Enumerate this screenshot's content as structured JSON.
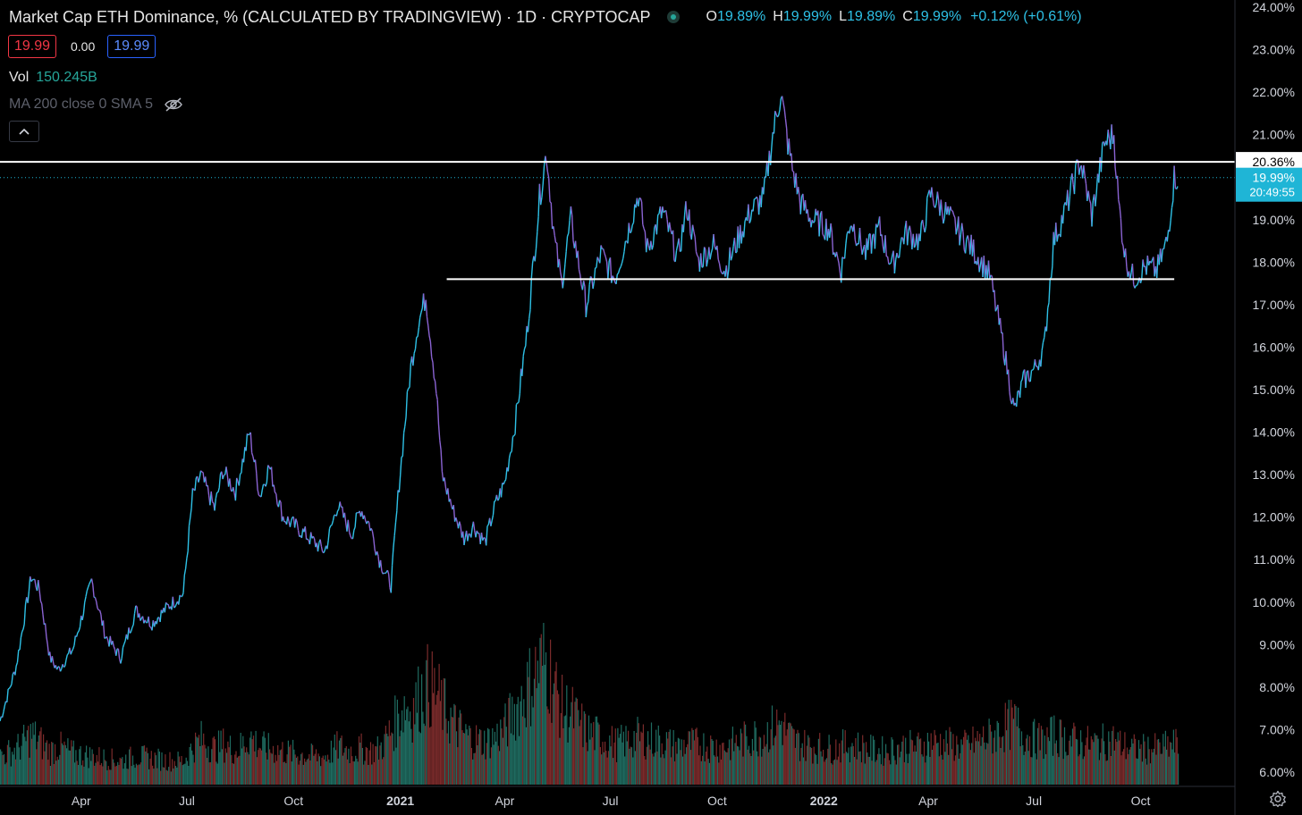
{
  "header": {
    "title": "Market Cap ETH Dominance, % (CALCULATED BY TRADINGVIEW) · 1D · CRYPTOCAP",
    "ohlc": [
      {
        "key": "O",
        "value": "19.89%"
      },
      {
        "key": "H",
        "value": "19.99%"
      },
      {
        "key": "L",
        "value": "19.89%"
      },
      {
        "key": "C",
        "value": "19.99%"
      }
    ],
    "change": "+0.12% (+0.61%)"
  },
  "quote": {
    "sell": "19.99",
    "spread": "0.00",
    "buy": "19.99"
  },
  "volume": {
    "label": "Vol",
    "value": "150.245B"
  },
  "indicator": {
    "label": "MA 200 close 0 SMA 5",
    "icon": "eye-off-icon"
  },
  "collapse_icon": "chevron-up-icon",
  "settings_icon": "gear-icon",
  "colors": {
    "background": "#000000",
    "up_candle": "#2ec1e6",
    "down_candle": "#8a63d2",
    "volume_up": "#1f6b60",
    "volume_down": "#7a2b2b",
    "last_price": "#1fb5d6",
    "horizontal_line": "#ffffff"
  },
  "chart_data": {
    "type": "line",
    "series": [
      {
        "x": [
          "2020-01-22",
          "2020-02-05",
          "2020-02-18",
          "2020-02-25",
          "2020-03-05",
          "2020-03-12",
          "2020-03-25",
          "2020-04-10",
          "2020-04-22",
          "2020-05-05",
          "2020-05-18",
          "2020-06-01",
          "2020-06-15",
          "2020-06-28",
          "2020-07-06",
          "2020-07-13",
          "2020-07-25",
          "2020-08-01",
          "2020-08-12",
          "2020-08-24",
          "2020-09-02",
          "2020-09-10",
          "2020-09-22",
          "2020-10-02",
          "2020-10-15",
          "2020-10-28",
          "2020-11-08",
          "2020-11-20",
          "2020-11-28",
          "2020-12-06",
          "2020-12-14",
          "2020-12-24",
          "2020-12-31",
          "2021-01-05",
          "2021-01-10",
          "2021-01-16",
          "2021-01-23",
          "2021-02-01",
          "2021-02-06",
          "2021-02-15",
          "2021-02-25",
          "2021-03-05",
          "2021-03-15",
          "2021-03-24",
          "2021-04-01",
          "2021-04-10",
          "2021-04-20",
          "2021-05-01",
          "2021-05-07",
          "2021-05-14",
          "2021-05-20",
          "2021-05-28",
          "2021-06-10",
          "2021-06-23",
          "2021-07-05",
          "2021-07-14",
          "2021-07-25",
          "2021-08-02",
          "2021-08-15",
          "2021-08-28",
          "2021-09-05",
          "2021-09-15",
          "2021-09-28",
          "2021-10-08",
          "2021-10-20",
          "2021-10-30",
          "2021-11-10",
          "2021-11-18",
          "2021-11-25",
          "2021-12-01",
          "2021-12-05",
          "2021-12-12",
          "2021-12-22",
          "2022-01-05",
          "2022-01-16",
          "2022-01-24",
          "2022-02-06",
          "2022-02-18",
          "2022-03-01",
          "2022-03-12",
          "2022-03-25",
          "2022-04-03",
          "2022-04-18",
          "2022-05-01",
          "2022-05-12",
          "2022-05-24",
          "2022-06-05",
          "2022-06-14",
          "2022-06-22",
          "2022-07-02",
          "2022-07-10",
          "2022-07-18",
          "2022-07-28",
          "2022-08-10",
          "2022-08-20",
          "2022-08-31",
          "2022-09-08",
          "2022-09-12",
          "2022-09-18",
          "2022-09-25",
          "2022-10-05",
          "2022-10-15",
          "2022-10-24",
          "2022-10-30",
          "2022-11-02"
        ],
        "values": [
          7.2,
          8.5,
          10.6,
          10.3,
          8.7,
          8.4,
          8.9,
          10.5,
          9.2,
          8.7,
          9.8,
          9.5,
          9.9,
          10.2,
          12.5,
          13.0,
          12.2,
          13.1,
          12.6,
          14.0,
          12.5,
          13.2,
          12.0,
          11.8,
          11.5,
          11.2,
          12.3,
          11.6,
          12.2,
          11.8,
          11.0,
          10.4,
          12.8,
          14.2,
          15.5,
          16.5,
          17.2,
          15.0,
          13.0,
          12.2,
          11.5,
          11.8,
          11.4,
          12.3,
          12.8,
          14.2,
          16.3,
          19.5,
          20.6,
          18.5,
          17.5,
          19.0,
          17.0,
          18.2,
          17.6,
          18.5,
          19.6,
          18.3,
          19.2,
          18.1,
          19.3,
          18.0,
          18.4,
          17.8,
          18.6,
          19.2,
          19.5,
          21.0,
          22.0,
          20.8,
          20.2,
          19.4,
          19.0,
          18.8,
          17.8,
          19.0,
          18.2,
          18.8,
          17.9,
          18.7,
          18.5,
          19.6,
          19.1,
          18.6,
          18.2,
          17.7,
          16.0,
          14.5,
          15.2,
          15.5,
          16.0,
          18.5,
          19.2,
          20.4,
          19.1,
          20.8,
          21.0,
          19.4,
          18.1,
          17.6,
          17.9,
          17.8,
          18.5,
          20.0,
          19.99
        ]
      }
    ],
    "volume_values": [
      1.2,
      1.5,
      2.1,
      1.8,
      1.4,
      1.6,
      1.3,
      1.2,
      1.1,
      1.0,
      1.2,
      1.1,
      1.0,
      1.0,
      1.6,
      1.9,
      1.5,
      1.7,
      1.4,
      2.0,
      1.6,
      1.5,
      1.4,
      1.3,
      1.2,
      1.2,
      1.6,
      1.4,
      1.5,
      1.4,
      1.5,
      2.3,
      3.0,
      3.4,
      3.1,
      3.6,
      4.2,
      3.8,
      3.3,
      2.6,
      2.1,
      1.9,
      1.8,
      2.0,
      2.4,
      3.2,
      4.0,
      5.0,
      5.2,
      4.0,
      3.2,
      3.0,
      2.2,
      2.0,
      1.7,
      1.8,
      2.0,
      1.9,
      1.8,
      1.6,
      1.7,
      1.7,
      1.6,
      1.6,
      1.8,
      2.0,
      2.1,
      2.4,
      2.6,
      2.1,
      1.9,
      1.7,
      1.6,
      1.5,
      1.6,
      1.7,
      1.5,
      1.4,
      1.5,
      1.6,
      1.6,
      1.8,
      1.7,
      1.6,
      1.8,
      2.0,
      2.4,
      2.6,
      2.1,
      1.9,
      1.8,
      2.1,
      1.9,
      1.8,
      1.7,
      1.8,
      1.9,
      1.7,
      1.6,
      1.5,
      1.5,
      1.5,
      1.6,
      1.7,
      1.6
    ],
    "y_ticks": [
      "6.00%",
      "7.00%",
      "8.00%",
      "9.00%",
      "10.00%",
      "11.00%",
      "12.00%",
      "13.00%",
      "14.00%",
      "15.00%",
      "16.00%",
      "17.00%",
      "18.00%",
      "19.00%",
      "20.00%",
      "21.00%",
      "22.00%",
      "23.00%",
      "24.00%"
    ],
    "y_tick_values": [
      6,
      7,
      8,
      9,
      10,
      11,
      12,
      13,
      14,
      15,
      16,
      17,
      18,
      19,
      20,
      21,
      22,
      23,
      24
    ],
    "ylim": [
      6,
      24
    ],
    "x_ticks": [
      {
        "label": "Apr",
        "date": "2020-04-01",
        "bold": false
      },
      {
        "label": "Jul",
        "date": "2020-07-01",
        "bold": false
      },
      {
        "label": "Oct",
        "date": "2020-10-01",
        "bold": false
      },
      {
        "label": "2021",
        "date": "2021-01-01",
        "bold": true
      },
      {
        "label": "Apr",
        "date": "2021-04-01",
        "bold": false
      },
      {
        "label": "Jul",
        "date": "2021-07-01",
        "bold": false
      },
      {
        "label": "Oct",
        "date": "2021-10-01",
        "bold": false
      },
      {
        "label": "2022",
        "date": "2022-01-01",
        "bold": true
      },
      {
        "label": "Apr",
        "date": "2022-04-01",
        "bold": false
      },
      {
        "label": "Jul",
        "date": "2022-07-01",
        "bold": false
      },
      {
        "label": "Oct",
        "date": "2022-10-01",
        "bold": false
      }
    ],
    "xlim": [
      "2020-01-22",
      "2022-11-12"
    ],
    "horizontal_lines": [
      {
        "value": 20.36,
        "label": "20.36%",
        "start": "2020-01-22",
        "end": "2022-11-30",
        "extends_full_width": true
      },
      {
        "value": 17.6,
        "start": "2021-02-10",
        "end": "2022-10-30",
        "extends_full_width": false
      }
    ],
    "last_price": {
      "value": 19.99,
      "label": "19.99%",
      "countdown": "20:49:55"
    },
    "grid": false,
    "legend": "none"
  }
}
